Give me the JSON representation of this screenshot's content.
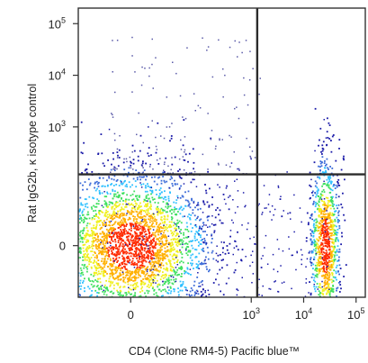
{
  "chart_data": {
    "type": "scatter",
    "subtype": "flow-cytometry-density",
    "xlabel": "CD4 (Clone RM4-5) Pacific blue™",
    "ylabel": "Rat IgG2b, κ isotype control",
    "x_scale": "biexponential",
    "y_scale": "biexponential",
    "xlim": [
      -500,
      150000
    ],
    "ylim": [
      -500,
      200000
    ],
    "x_ticks": [
      {
        "value": 0,
        "base": "0",
        "exp": ""
      },
      {
        "value": 1000,
        "base": "10",
        "exp": "3"
      },
      {
        "value": 10000,
        "base": "10",
        "exp": "4"
      },
      {
        "value": 100000,
        "base": "10",
        "exp": "5"
      }
    ],
    "y_ticks": [
      {
        "value": 0,
        "base": "0",
        "exp": ""
      },
      {
        "value": 1000,
        "base": "10",
        "exp": "3"
      },
      {
        "value": 10000,
        "base": "10",
        "exp": "4"
      },
      {
        "value": 100000,
        "base": "10",
        "exp": "5"
      }
    ],
    "quadrant_gate": {
      "x": 1300,
      "y": 600
    },
    "populations": [
      {
        "name": "CD4-",
        "x_center": 0,
        "y_center": 0
      },
      {
        "name": "CD4+",
        "x_center": 25000,
        "y_center": 0
      }
    ],
    "colors": {
      "low_density": "#1a1aa8",
      "mid_density": "#30c0ff",
      "high_density": "#ff2a00",
      "gate_line": "#2b2b2b",
      "frame": "#333333"
    },
    "grid": false
  }
}
